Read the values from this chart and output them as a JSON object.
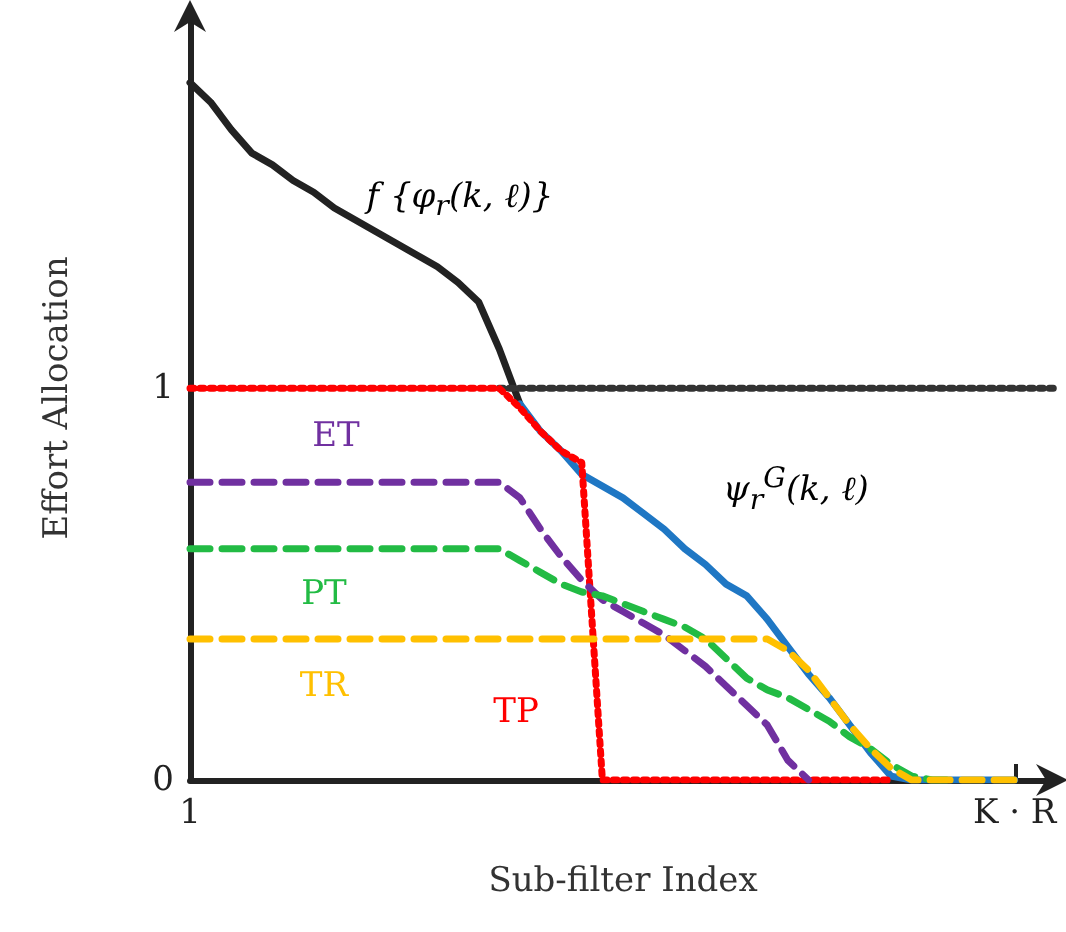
{
  "chart_data": {
    "type": "line",
    "xlabel": "Sub-filter Index",
    "ylabel": "Effort Allocation",
    "categories": [
      "1",
      null,
      null,
      null,
      null,
      null,
      null,
      null,
      null,
      null,
      null,
      null,
      null,
      null,
      null,
      null,
      null,
      null,
      null,
      null,
      null,
      null,
      null,
      null,
      null,
      null,
      null,
      null,
      null,
      null,
      null,
      null,
      null,
      null,
      null,
      null,
      null,
      null,
      null,
      null,
      "K · R",
      null,
      null
    ],
    "ylim": [
      0,
      1.95
    ],
    "yticks": [
      0,
      1
    ],
    "grid": false,
    "legend": false,
    "marker": "none",
    "annotations": [
      "f {φ$_{r}$(k, ℓ)}",
      "ψ$_{r}$$^{G}$(k, ℓ)"
    ],
    "series": [
      {
        "color": "#222222",
        "line_style": "solid",
        "values": [
          1.78,
          1.73,
          1.66,
          1.6,
          1.57,
          1.53,
          1.5,
          1.46,
          1.43,
          1.4,
          1.37,
          1.34,
          1.31,
          1.27,
          1.22,
          1.1,
          0.96,
          null,
          null,
          null,
          null,
          null,
          null,
          null,
          null,
          null,
          null,
          null,
          null,
          null,
          null,
          null,
          null,
          null,
          null,
          null,
          null,
          null,
          null,
          null,
          null,
          null,
          null
        ]
      },
      {
        "color": "#1f77c4",
        "line_style": "solid",
        "values": [
          null,
          null,
          null,
          null,
          null,
          null,
          null,
          null,
          null,
          null,
          null,
          null,
          null,
          null,
          null,
          null,
          0.96,
          0.89,
          0.84,
          0.78,
          0.75,
          0.72,
          0.68,
          0.64,
          0.59,
          0.55,
          0.5,
          0.47,
          0.41,
          0.34,
          0.27,
          0.21,
          0.14,
          0.07,
          0.01,
          0,
          0,
          0,
          0,
          0,
          0,
          null,
          null
        ]
      },
      {
        "color": "#333333",
        "line_style": "dotted",
        "values": [
          null,
          null,
          null,
          null,
          null,
          null,
          null,
          null,
          null,
          null,
          null,
          null,
          null,
          null,
          null,
          1,
          1,
          1,
          1,
          1,
          1,
          1,
          1,
          1,
          1,
          1,
          1,
          1,
          1,
          1,
          1,
          1,
          1,
          1,
          1,
          1,
          1,
          1,
          1,
          1,
          1,
          1,
          1
        ]
      },
      {
        "name": "TP",
        "color": "#ff0000",
        "line_style": "dotted",
        "values": [
          1,
          1,
          1,
          1,
          1,
          1,
          1,
          1,
          1,
          1,
          1,
          1,
          1,
          1,
          1,
          1,
          0.95,
          0.89,
          0.84,
          0.81,
          0,
          0,
          0,
          0,
          0,
          0,
          0,
          0,
          0,
          0,
          0,
          0,
          0,
          0,
          0,
          null,
          null,
          null,
          null,
          null,
          null,
          null,
          null
        ]
      },
      {
        "name": "ET",
        "color": "#7030a0",
        "line_style": "dashed",
        "values": [
          0.76,
          0.76,
          0.76,
          0.76,
          0.76,
          0.76,
          0.76,
          0.76,
          0.76,
          0.76,
          0.76,
          0.76,
          0.76,
          0.76,
          0.76,
          0.76,
          0.72,
          0.64,
          0.57,
          0.51,
          0.46,
          0.43,
          0.4,
          0.37,
          0.33,
          0.29,
          0.24,
          0.19,
          0.14,
          0.05,
          0,
          null,
          null,
          null,
          null,
          null,
          null,
          null,
          null,
          null,
          null,
          null,
          null
        ]
      },
      {
        "name": "PT",
        "color": "#22bb44",
        "line_style": "dashed",
        "values": [
          0.59,
          0.59,
          0.59,
          0.59,
          0.59,
          0.59,
          0.59,
          0.59,
          0.59,
          0.59,
          0.59,
          0.59,
          0.59,
          0.59,
          0.59,
          0.59,
          0.56,
          0.53,
          0.5,
          0.48,
          0.47,
          0.45,
          0.43,
          0.41,
          0.39,
          0.36,
          0.31,
          0.26,
          0.23,
          0.21,
          0.18,
          0.15,
          0.11,
          0.08,
          0.04,
          0.01,
          0,
          0,
          null,
          null,
          null,
          null,
          null
        ]
      },
      {
        "name": "TR",
        "color": "#ffc000",
        "line_style": "dashed",
        "values": [
          0.36,
          0.36,
          0.36,
          0.36,
          0.36,
          0.36,
          0.36,
          0.36,
          0.36,
          0.36,
          0.36,
          0.36,
          0.36,
          0.36,
          0.36,
          0.36,
          0.36,
          0.36,
          0.36,
          0.36,
          0.36,
          0.36,
          0.36,
          0.36,
          0.36,
          0.36,
          0.36,
          0.36,
          0.36,
          0.33,
          0.28,
          0.21,
          0.14,
          0.08,
          0.03,
          0,
          0,
          0,
          0,
          0,
          0,
          null,
          null
        ]
      }
    ]
  }
}
